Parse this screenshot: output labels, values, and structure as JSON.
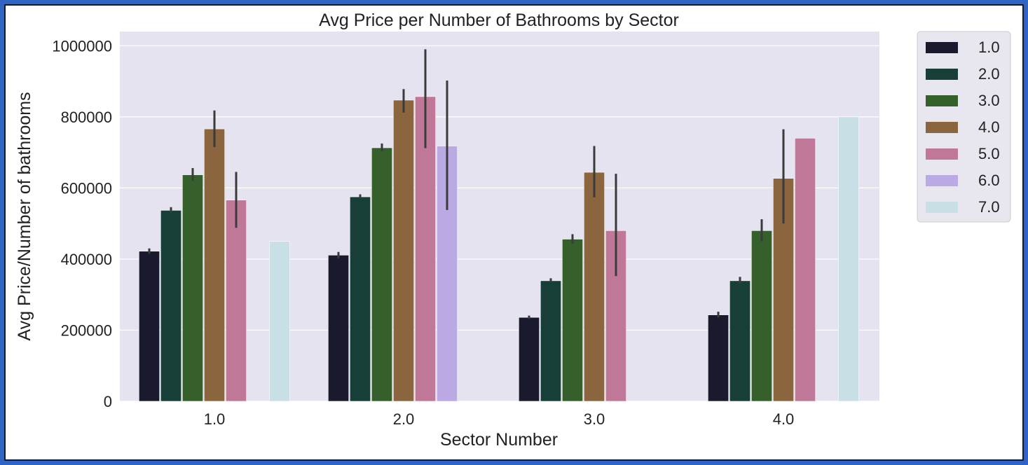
{
  "chart_data": {
    "type": "bar",
    "title": "Avg Price per Number of Bathrooms by Sector",
    "xlabel": "Sector Number",
    "ylabel": "Avg Price/Number of bathrooms",
    "categories": [
      "1.0",
      "2.0",
      "3.0",
      "4.0"
    ],
    "ylim": [
      0,
      1040000
    ],
    "yticks": [
      0,
      200000,
      400000,
      600000,
      800000,
      1000000
    ],
    "ytick_labels": [
      "0",
      "200000",
      "400000",
      "600000",
      "800000",
      "1000000"
    ],
    "grid": true,
    "legend_position": "outside-top-right",
    "series": [
      {
        "name": "1.0",
        "color": "#1a1a2e",
        "values": [
          422000,
          411000,
          236000,
          243000
        ],
        "err_low": [
          415000,
          402000,
          232000,
          236000
        ],
        "err_high": [
          430000,
          420000,
          241000,
          252000
        ]
      },
      {
        "name": "2.0",
        "color": "#173f38",
        "values": [
          537000,
          575000,
          339000,
          339000
        ],
        "err_low": [
          531000,
          570000,
          334000,
          331000
        ],
        "err_high": [
          546000,
          582000,
          346000,
          350000
        ]
      },
      {
        "name": "3.0",
        "color": "#35602c",
        "values": [
          637000,
          713000,
          456000,
          480000
        ],
        "err_low": [
          620000,
          703000,
          443000,
          450000
        ],
        "err_high": [
          656000,
          725000,
          470000,
          512000
        ]
      },
      {
        "name": "4.0",
        "color": "#8b653e",
        "values": [
          766000,
          847000,
          644000,
          627000
        ],
        "err_low": [
          715000,
          812000,
          574000,
          500000
        ],
        "err_high": [
          818000,
          878000,
          718000,
          765000
        ]
      },
      {
        "name": "5.0",
        "color": "#c07898",
        "values": [
          566000,
          857000,
          480000,
          740000
        ],
        "err_low": [
          488000,
          712000,
          352000,
          740000
        ],
        "err_high": [
          645000,
          990000,
          640000,
          740000
        ]
      },
      {
        "name": "6.0",
        "color": "#bba9e4",
        "values": [
          null,
          718000,
          null,
          null
        ],
        "err_low": [
          null,
          538000,
          null,
          null
        ],
        "err_high": [
          null,
          902000,
          null,
          null
        ]
      },
      {
        "name": "7.0",
        "color": "#c8dfe6",
        "values": [
          450000,
          null,
          null,
          800000
        ],
        "err_low": [
          450000,
          null,
          null,
          800000
        ],
        "err_high": [
          450000,
          null,
          null,
          800000
        ]
      }
    ]
  }
}
